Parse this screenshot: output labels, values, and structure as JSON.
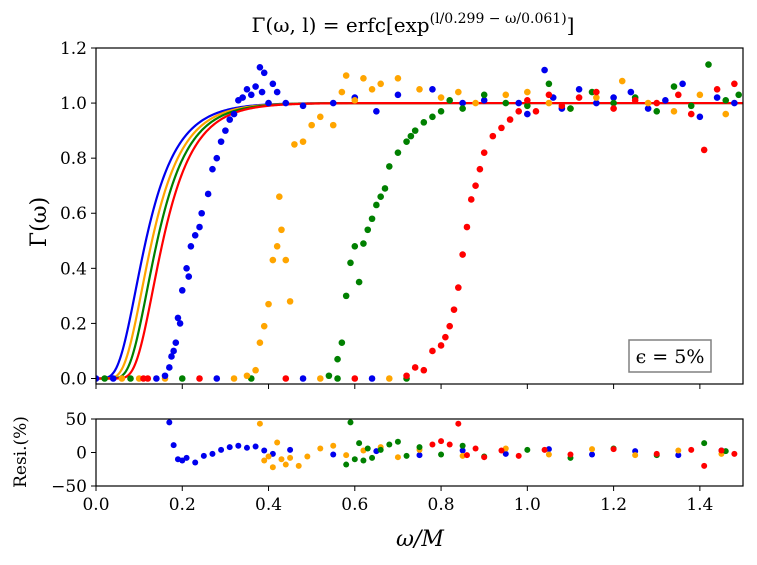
{
  "chart_data": [
    {
      "type": "scatter",
      "title": "Γ(ω, l) = erfc[exp(l/0.299 − ω/0.061)]",
      "title_parts": {
        "lhs": "Γ(ω, l) = erfc[exp",
        "sup": "(l/0.299 − ω/0.061)",
        "close": "]"
      },
      "xlabel": "ω/M",
      "ylabel": "Γ(ω)",
      "xlim": [
        0.0,
        1.5
      ],
      "ylim": [
        -0.02,
        1.2
      ],
      "xticks": [
        0.0,
        0.2,
        0.4,
        0.6,
        0.8,
        1.0,
        1.2,
        1.4
      ],
      "yticks": [
        0.0,
        0.2,
        0.4,
        0.6,
        0.8,
        1.0,
        1.2
      ],
      "xtick_labels": [
        "0.0",
        "0.2",
        "0.4",
        "0.6",
        "0.8",
        "1.0",
        "1.2",
        "1.4"
      ],
      "ytick_labels": [
        "0.0",
        "0.2",
        "0.4",
        "0.6",
        "0.8",
        "1.0",
        "1.2"
      ],
      "annotation": "ϵ = 5%",
      "annotation_position": "bottom-right",
      "fit_model": {
        "l_scale": 0.299,
        "w_scale": 0.061
      },
      "series": [
        {
          "name": "blue",
          "color": "#0000ee",
          "l": 0.345,
          "points": [
            [
              0.16,
              0.01
            ],
            [
              0.17,
              0.04
            ],
            [
              0.175,
              0.08
            ],
            [
              0.18,
              0.1
            ],
            [
              0.185,
              0.13
            ],
            [
              0.19,
              0.22
            ],
            [
              0.195,
              0.2
            ],
            [
              0.2,
              0.32
            ],
            [
              0.21,
              0.4
            ],
            [
              0.215,
              0.37
            ],
            [
              0.22,
              0.48
            ],
            [
              0.23,
              0.52
            ],
            [
              0.24,
              0.55
            ],
            [
              0.245,
              0.6
            ],
            [
              0.26,
              0.67
            ],
            [
              0.27,
              0.76
            ],
            [
              0.28,
              0.8
            ],
            [
              0.29,
              0.86
            ],
            [
              0.3,
              0.9
            ],
            [
              0.31,
              0.94
            ],
            [
              0.32,
              0.96
            ],
            [
              0.33,
              1.01
            ],
            [
              0.34,
              1.02
            ],
            [
              0.35,
              1.05
            ],
            [
              0.36,
              1.03
            ],
            [
              0.37,
              1.06
            ],
            [
              0.38,
              1.13
            ],
            [
              0.385,
              1.04
            ],
            [
              0.39,
              1.11
            ],
            [
              0.4,
              1.0
            ],
            [
              0.41,
              1.07
            ],
            [
              0.42,
              1.04
            ],
            [
              0.44,
              1.0
            ],
            [
              0.48,
              0.99
            ],
            [
              0.55,
              1.0
            ],
            [
              0.6,
              1.02
            ],
            [
              0.65,
              0.97
            ],
            [
              0.7,
              1.03
            ],
            [
              0.78,
              1.05
            ],
            [
              0.85,
              1.0
            ],
            [
              0.9,
              1.01
            ],
            [
              0.98,
              1.0
            ],
            [
              1.0,
              0.96
            ],
            [
              1.04,
              1.12
            ],
            [
              1.06,
              1.02
            ],
            [
              1.08,
              0.98
            ],
            [
              1.12,
              1.05
            ],
            [
              1.16,
              1.0
            ],
            [
              1.2,
              1.02
            ],
            [
              1.24,
              1.04
            ],
            [
              1.28,
              0.98
            ],
            [
              1.32,
              1.01
            ],
            [
              1.36,
              1.07
            ],
            [
              1.4,
              0.95
            ],
            [
              1.44,
              1.02
            ],
            [
              1.48,
              1.0
            ]
          ]
        },
        {
          "name": "orange",
          "color": "#ffa500",
          "l": 0.415,
          "points": [
            [
              0.35,
              0.01
            ],
            [
              0.37,
              0.03
            ],
            [
              0.38,
              0.13
            ],
            [
              0.39,
              0.19
            ],
            [
              0.4,
              0.27
            ],
            [
              0.41,
              0.43
            ],
            [
              0.42,
              0.48
            ],
            [
              0.425,
              0.66
            ],
            [
              0.43,
              0.54
            ],
            [
              0.44,
              0.43
            ],
            [
              0.45,
              0.28
            ],
            [
              0.46,
              0.85
            ],
            [
              0.48,
              0.86
            ],
            [
              0.5,
              0.92
            ],
            [
              0.52,
              0.95
            ],
            [
              0.55,
              0.92
            ],
            [
              0.57,
              1.04
            ],
            [
              0.58,
              1.1
            ],
            [
              0.6,
              1.01
            ],
            [
              0.62,
              1.09
            ],
            [
              0.64,
              1.05
            ],
            [
              0.66,
              1.07
            ],
            [
              0.7,
              1.09
            ],
            [
              0.75,
              1.05
            ],
            [
              0.8,
              1.02
            ],
            [
              0.84,
              1.04
            ],
            [
              0.88,
              1.0
            ],
            [
              0.95,
              1.03
            ],
            [
              1.0,
              1.04
            ],
            [
              1.05,
              1.0
            ],
            [
              1.1,
              0.98
            ],
            [
              1.16,
              1.02
            ],
            [
              1.22,
              1.08
            ],
            [
              1.28,
              1.0
            ],
            [
              1.34,
              0.97
            ],
            [
              1.4,
              1.03
            ],
            [
              1.46,
              0.96
            ]
          ]
        },
        {
          "name": "green",
          "color": "#008000",
          "l": 0.475,
          "points": [
            [
              0.54,
              0.01
            ],
            [
              0.56,
              0.07
            ],
            [
              0.57,
              0.13
            ],
            [
              0.58,
              0.3
            ],
            [
              0.59,
              0.42
            ],
            [
              0.6,
              0.48
            ],
            [
              0.61,
              0.35
            ],
            [
              0.62,
              0.49
            ],
            [
              0.63,
              0.54
            ],
            [
              0.64,
              0.58
            ],
            [
              0.65,
              0.63
            ],
            [
              0.66,
              0.66
            ],
            [
              0.67,
              0.69
            ],
            [
              0.68,
              0.77
            ],
            [
              0.7,
              0.82
            ],
            [
              0.72,
              0.86
            ],
            [
              0.73,
              0.88
            ],
            [
              0.74,
              0.9
            ],
            [
              0.76,
              0.93
            ],
            [
              0.78,
              0.95
            ],
            [
              0.8,
              0.97
            ],
            [
              0.82,
              1.01
            ],
            [
              0.85,
              0.98
            ],
            [
              0.9,
              1.03
            ],
            [
              0.95,
              1.0
            ],
            [
              1.0,
              0.99
            ],
            [
              1.05,
              1.07
            ],
            [
              1.1,
              0.98
            ],
            [
              1.15,
              1.04
            ],
            [
              1.2,
              1.0
            ],
            [
              1.25,
              1.02
            ],
            [
              1.3,
              0.97
            ],
            [
              1.34,
              1.06
            ],
            [
              1.38,
              0.99
            ],
            [
              1.42,
              1.14
            ],
            [
              1.46,
              1.01
            ],
            [
              1.49,
              1.03
            ]
          ]
        },
        {
          "name": "red",
          "color": "#ff0000",
          "l": 0.54,
          "points": [
            [
              0.72,
              0.01
            ],
            [
              0.74,
              0.04
            ],
            [
              0.76,
              0.03
            ],
            [
              0.78,
              0.1
            ],
            [
              0.8,
              0.12
            ],
            [
              0.81,
              0.15
            ],
            [
              0.82,
              0.19
            ],
            [
              0.83,
              0.25
            ],
            [
              0.84,
              0.33
            ],
            [
              0.85,
              0.45
            ],
            [
              0.86,
              0.55
            ],
            [
              0.87,
              0.65
            ],
            [
              0.88,
              0.7
            ],
            [
              0.89,
              0.76
            ],
            [
              0.9,
              0.82
            ],
            [
              0.92,
              0.88
            ],
            [
              0.94,
              0.91
            ],
            [
              0.96,
              0.94
            ],
            [
              0.98,
              0.97
            ],
            [
              1.0,
              1.01
            ],
            [
              1.02,
              0.97
            ],
            [
              1.05,
              1.03
            ],
            [
              1.08,
              0.99
            ],
            [
              1.12,
              1.02
            ],
            [
              1.16,
              1.04
            ],
            [
              1.2,
              0.98
            ],
            [
              1.25,
              1.01
            ],
            [
              1.3,
              1.0
            ],
            [
              1.35,
              1.03
            ],
            [
              1.38,
              0.96
            ],
            [
              1.41,
              0.83
            ],
            [
              1.44,
              1.05
            ],
            [
              1.48,
              1.07
            ]
          ]
        }
      ],
      "zero_region_x": [
        0.0,
        0.1,
        0.02,
        0.11,
        0.04,
        0.06,
        0.08,
        0.12,
        0.14,
        0.16,
        0.2,
        0.24,
        0.28,
        0.32,
        0.36,
        0.44,
        0.48,
        0.52,
        0.56,
        0.6,
        0.64,
        0.68,
        0.72
      ]
    },
    {
      "type": "scatter",
      "xlabel": "ω/M",
      "ylabel": "Resi.(%)",
      "xlim": [
        0.0,
        1.5
      ],
      "ylim": [
        -50,
        50
      ],
      "yticks": [
        50,
        0,
        -50
      ],
      "ytick_labels": [
        "50",
        "0",
        "−50"
      ],
      "residuals": [
        {
          "name": "blue",
          "color": "#0000ee",
          "points": [
            [
              0.17,
              45
            ],
            [
              0.18,
              11
            ],
            [
              0.19,
              -10
            ],
            [
              0.2,
              -12
            ],
            [
              0.21,
              -8
            ],
            [
              0.23,
              -15
            ],
            [
              0.25,
              -5
            ],
            [
              0.27,
              -2
            ],
            [
              0.29,
              4
            ],
            [
              0.31,
              8
            ],
            [
              0.33,
              10
            ],
            [
              0.35,
              7
            ],
            [
              0.37,
              9
            ],
            [
              0.39,
              3
            ],
            [
              0.41,
              -2
            ],
            [
              0.45,
              4
            ],
            [
              0.55,
              -3
            ],
            [
              0.65,
              2
            ],
            [
              0.75,
              -4
            ],
            [
              0.85,
              3
            ],
            [
              0.95,
              -2
            ],
            [
              1.05,
              5
            ],
            [
              1.15,
              -3
            ],
            [
              1.25,
              2
            ],
            [
              1.35,
              -4
            ],
            [
              1.45,
              3
            ]
          ]
        },
        {
          "name": "orange",
          "color": "#ffa500",
          "points": [
            [
              0.38,
              43
            ],
            [
              0.39,
              -12
            ],
            [
              0.4,
              -6
            ],
            [
              0.41,
              -22
            ],
            [
              0.42,
              15
            ],
            [
              0.43,
              -10
            ],
            [
              0.44,
              -18
            ],
            [
              0.45,
              -8
            ],
            [
              0.47,
              -20
            ],
            [
              0.49,
              -6
            ],
            [
              0.52,
              6
            ],
            [
              0.55,
              10
            ],
            [
              0.58,
              -4
            ],
            [
              0.62,
              3
            ],
            [
              0.66,
              8
            ],
            [
              0.7,
              -7
            ],
            [
              0.75,
              4
            ],
            [
              0.85,
              -5
            ],
            [
              0.95,
              6
            ],
            [
              1.05,
              -3
            ],
            [
              1.15,
              5
            ],
            [
              1.25,
              -4
            ],
            [
              1.35,
              3
            ],
            [
              1.45,
              -2
            ]
          ]
        },
        {
          "name": "green",
          "color": "#008000",
          "points": [
            [
              0.58,
              -18
            ],
            [
              0.59,
              45
            ],
            [
              0.6,
              -10
            ],
            [
              0.61,
              14
            ],
            [
              0.62,
              -12
            ],
            [
              0.63,
              6
            ],
            [
              0.64,
              -8
            ],
            [
              0.66,
              4
            ],
            [
              0.68,
              12
            ],
            [
              0.7,
              16
            ],
            [
              0.72,
              -5
            ],
            [
              0.75,
              8
            ],
            [
              0.8,
              -3
            ],
            [
              0.85,
              10
            ],
            [
              0.9,
              -6
            ],
            [
              1.0,
              4
            ],
            [
              1.1,
              -8
            ],
            [
              1.2,
              6
            ],
            [
              1.3,
              -4
            ],
            [
              1.41,
              14
            ],
            [
              1.46,
              2
            ]
          ]
        },
        {
          "name": "red",
          "color": "#ff0000",
          "points": [
            [
              0.78,
              12
            ],
            [
              0.8,
              17
            ],
            [
              0.82,
              12
            ],
            [
              0.84,
              43
            ],
            [
              0.86,
              -4
            ],
            [
              0.88,
              6
            ],
            [
              0.9,
              -7
            ],
            [
              0.94,
              3
            ],
            [
              0.98,
              -5
            ],
            [
              1.04,
              4
            ],
            [
              1.1,
              -3
            ],
            [
              1.2,
              5
            ],
            [
              1.3,
              -2
            ],
            [
              1.38,
              4
            ],
            [
              1.41,
              -20
            ],
            [
              1.45,
              3
            ],
            [
              1.48,
              -2
            ]
          ]
        }
      ]
    }
  ]
}
